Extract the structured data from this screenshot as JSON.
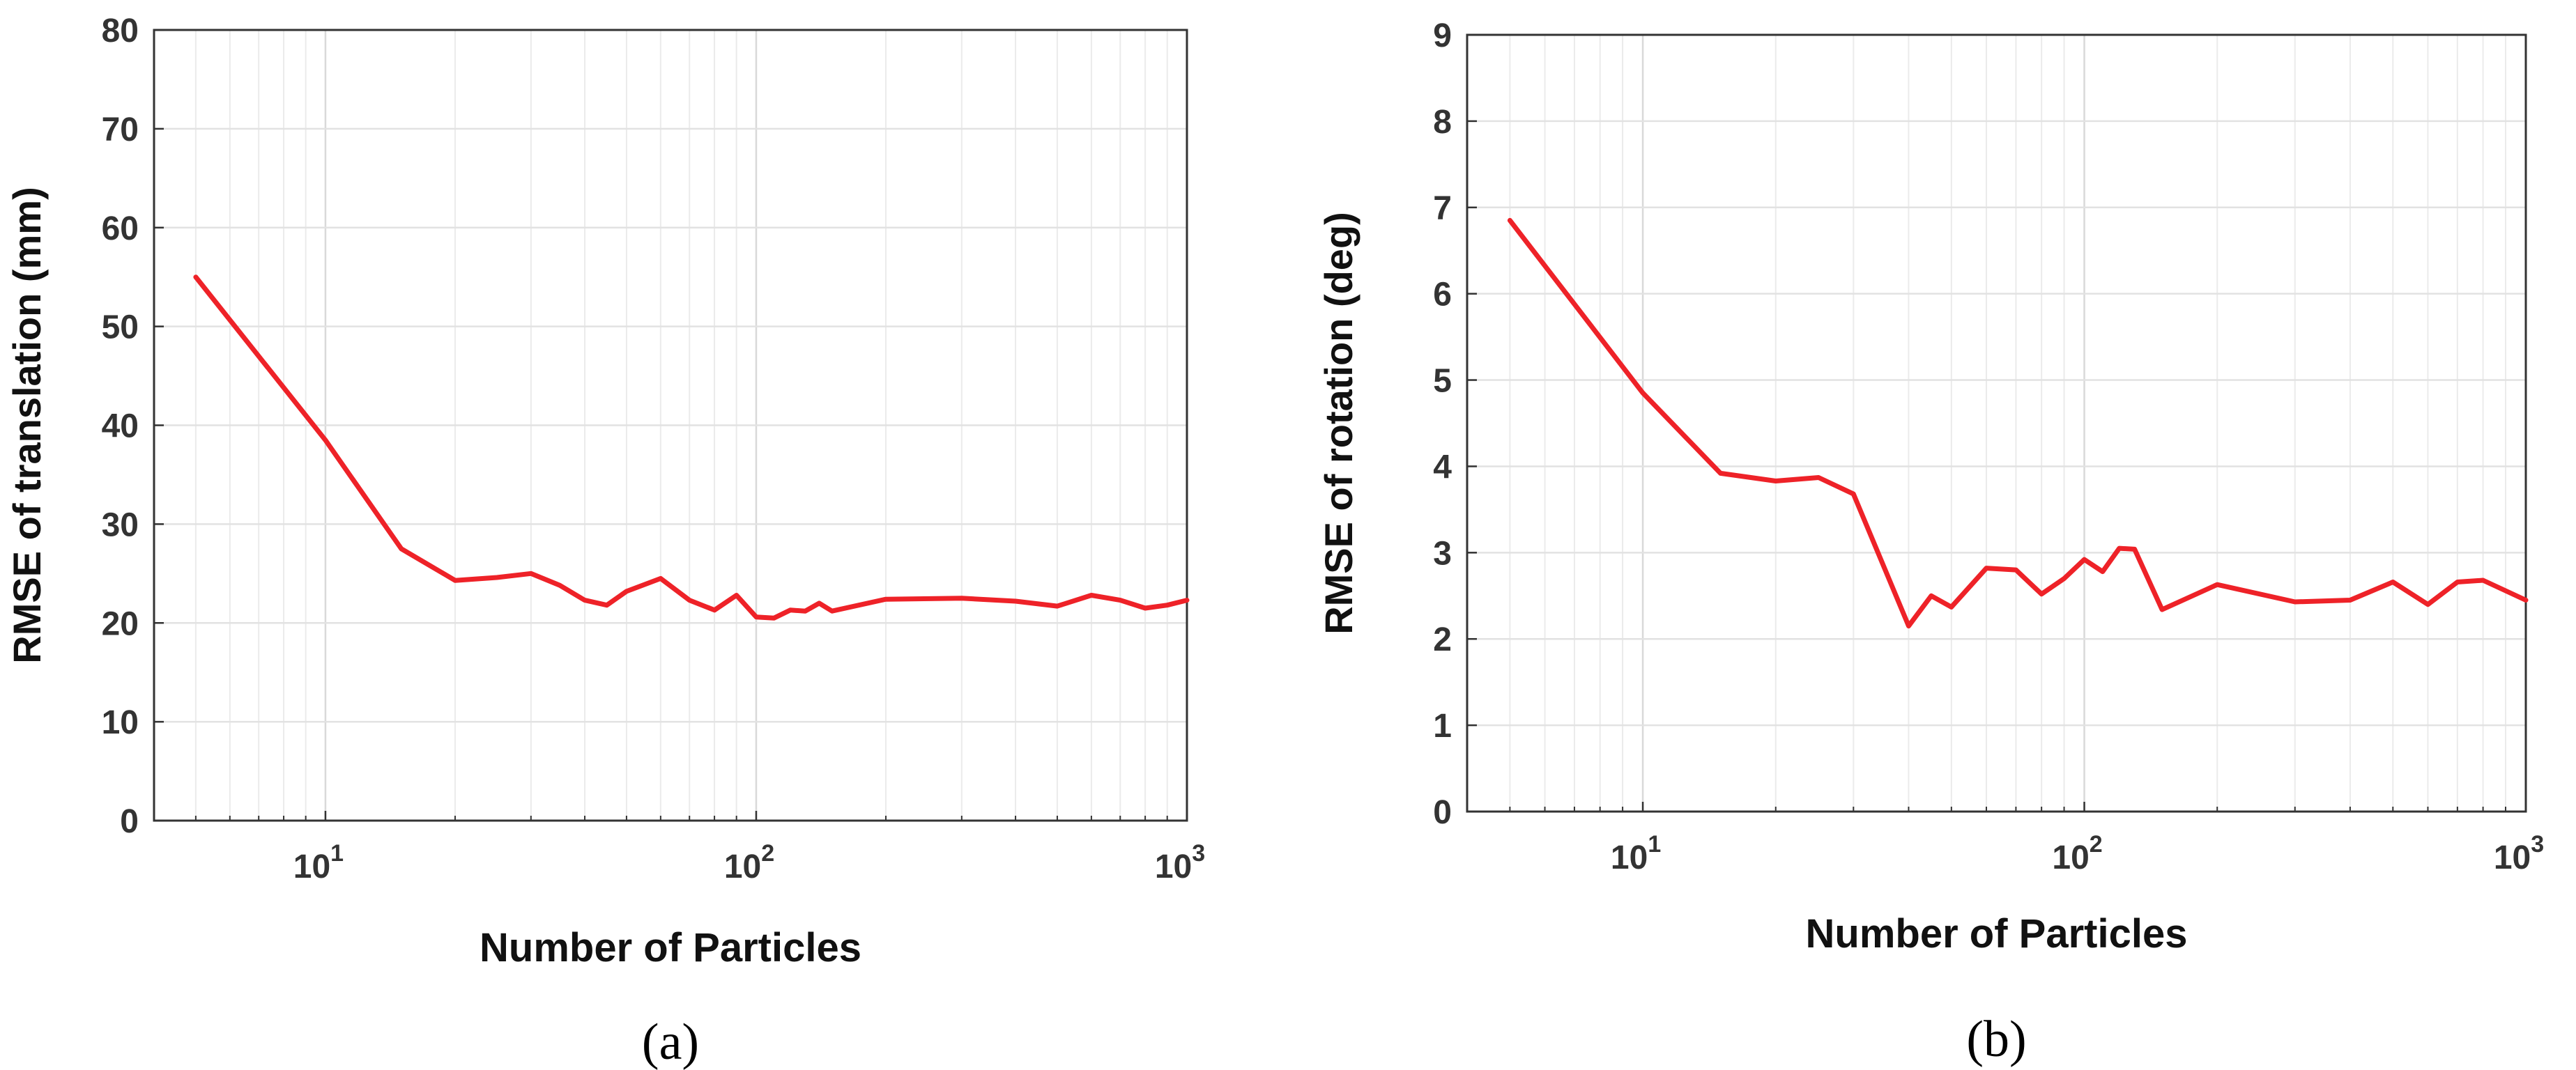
{
  "chart_data": [
    {
      "type": "line",
      "panel_label": "(a)",
      "xlabel": "Number of Particles",
      "ylabel": "RMSE of translation (mm)",
      "xscale": "log",
      "xlim": [
        4,
        1000
      ],
      "ylim": [
        0,
        80
      ],
      "yticks": [
        "0",
        "10",
        "20",
        "30",
        "40",
        "50",
        "60",
        "70",
        "80"
      ],
      "xticks": [
        {
          "base": "10",
          "exp": "1"
        },
        {
          "base": "10",
          "exp": "2"
        },
        {
          "base": "10",
          "exp": "3"
        }
      ],
      "grid": true,
      "line_color": "#ee2228",
      "series": [
        {
          "x": [
            5,
            10,
            15,
            20,
            25,
            30,
            35,
            40,
            45,
            50,
            60,
            70,
            80,
            90,
            100,
            110,
            120,
            130,
            140,
            150,
            200,
            300,
            400,
            500,
            600,
            700,
            800,
            900,
            1000
          ],
          "y": [
            55,
            38.5,
            27.5,
            24.3,
            24.6,
            25,
            23.8,
            22.3,
            21.8,
            23.2,
            24.5,
            22.3,
            21.3,
            22.8,
            20.6,
            20.5,
            21.3,
            21.2,
            22.0,
            21.2,
            22.4,
            22.5,
            22.2,
            21.7,
            22.8,
            22.3,
            21.5,
            21.8,
            22.3
          ]
        }
      ]
    },
    {
      "type": "line",
      "panel_label": "(b)",
      "xlabel": "Number of Particles",
      "ylabel": "RMSE of rotation (deg)",
      "xscale": "log",
      "xlim": [
        4,
        1000
      ],
      "ylim": [
        0,
        9
      ],
      "yticks": [
        "0",
        "1",
        "2",
        "3",
        "4",
        "5",
        "6",
        "7",
        "8",
        "9"
      ],
      "xticks": [
        {
          "base": "10",
          "exp": "1"
        },
        {
          "base": "10",
          "exp": "2"
        },
        {
          "base": "10",
          "exp": "3"
        }
      ],
      "grid": true,
      "line_color": "#ee2228",
      "series": [
        {
          "x": [
            5,
            10,
            15,
            20,
            25,
            30,
            40,
            45,
            50,
            60,
            70,
            80,
            90,
            100,
            110,
            120,
            130,
            150,
            200,
            300,
            400,
            500,
            600,
            700,
            800,
            1000
          ],
          "y": [
            6.85,
            4.85,
            3.92,
            3.83,
            3.87,
            3.68,
            2.15,
            2.5,
            2.37,
            2.82,
            2.8,
            2.52,
            2.7,
            2.92,
            2.78,
            3.05,
            3.04,
            2.34,
            2.63,
            2.43,
            2.45,
            2.66,
            2.4,
            2.66,
            2.68,
            2.45
          ]
        }
      ]
    }
  ]
}
